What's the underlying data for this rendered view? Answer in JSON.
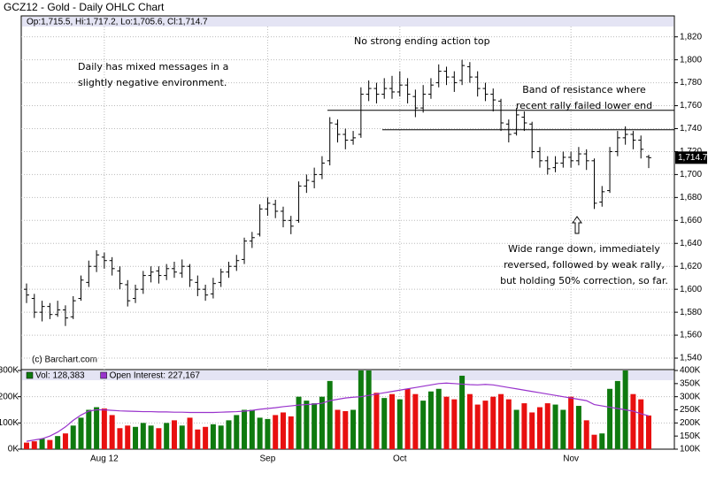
{
  "chart_data": {
    "type": "ohlc",
    "title": "GCZ12 - Gold - Daily OHLC Chart",
    "ohlc_header": "Op:1,715.5, Hi:1,717.2, Lo:1,705.6, Cl:1,714.7",
    "last_price_label": "1,714.7",
    "copyright": "(c) Barchart.com",
    "annotations": [
      [
        "No strong ending action top"
      ],
      [
        "Daily has mixed messages in a",
        "slightly negative environment."
      ],
      [
        "Band of resistance where",
        "recent rally failed lower end"
      ],
      [
        "Wide range down, immediately",
        "reversed, followed by weak rally,",
        "but holding 50% correction, so far."
      ]
    ],
    "resistance_levels": [
      1756,
      1739
    ],
    "bar_color": "#000000",
    "categories": [
      null,
      null,
      null,
      null,
      null,
      null,
      null,
      null,
      null,
      null,
      "Aug 12",
      null,
      null,
      null,
      null,
      null,
      null,
      null,
      null,
      null,
      null,
      null,
      null,
      null,
      null,
      null,
      null,
      null,
      null,
      null,
      null,
      "Sep",
      null,
      null,
      null,
      null,
      null,
      null,
      null,
      null,
      null,
      null,
      null,
      null,
      null,
      null,
      null,
      null,
      "Oct",
      null,
      null,
      null,
      null,
      null,
      null,
      null,
      null,
      null,
      null,
      null,
      null,
      null,
      null,
      null,
      null,
      null,
      null,
      null,
      null,
      null,
      "Nov",
      null,
      null,
      null,
      null,
      null,
      null,
      null,
      null,
      null,
      null
    ],
    "ohlc": [
      [
        1600,
        1605,
        1588,
        1595
      ],
      [
        1592,
        1596,
        1575,
        1580
      ],
      [
        1580,
        1590,
        1572,
        1585
      ],
      [
        1585,
        1588,
        1574,
        1578
      ],
      [
        1578,
        1590,
        1576,
        1582
      ],
      [
        1582,
        1586,
        1568,
        1575
      ],
      [
        1576,
        1594,
        1574,
        1590
      ],
      [
        1592,
        1612,
        1590,
        1608
      ],
      [
        1606,
        1625,
        1602,
        1620
      ],
      [
        1620,
        1634,
        1615,
        1630
      ],
      [
        1628,
        1632,
        1618,
        1625
      ],
      [
        1625,
        1628,
        1612,
        1618
      ],
      [
        1616,
        1620,
        1600,
        1605
      ],
      [
        1604,
        1608,
        1585,
        1590
      ],
      [
        1592,
        1604,
        1588,
        1600
      ],
      [
        1600,
        1616,
        1596,
        1612
      ],
      [
        1612,
        1620,
        1606,
        1615
      ],
      [
        1616,
        1620,
        1605,
        1612
      ],
      [
        1612,
        1622,
        1608,
        1618
      ],
      [
        1618,
        1624,
        1610,
        1615
      ],
      [
        1614,
        1626,
        1610,
        1620
      ],
      [
        1620,
        1622,
        1602,
        1608
      ],
      [
        1606,
        1612,
        1594,
        1600
      ],
      [
        1600,
        1604,
        1590,
        1595
      ],
      [
        1596,
        1610,
        1592,
        1605
      ],
      [
        1606,
        1618,
        1602,
        1615
      ],
      [
        1615,
        1624,
        1610,
        1620
      ],
      [
        1620,
        1630,
        1616,
        1625
      ],
      [
        1626,
        1645,
        1622,
        1642
      ],
      [
        1642,
        1650,
        1636,
        1645
      ],
      [
        1648,
        1674,
        1646,
        1670
      ],
      [
        1670,
        1680,
        1664,
        1675
      ],
      [
        1674,
        1678,
        1662,
        1668
      ],
      [
        1668,
        1672,
        1654,
        1660
      ],
      [
        1660,
        1664,
        1648,
        1655
      ],
      [
        1660,
        1694,
        1658,
        1690
      ],
      [
        1690,
        1700,
        1684,
        1695
      ],
      [
        1694,
        1706,
        1688,
        1700
      ],
      [
        1700,
        1716,
        1696,
        1710
      ],
      [
        1712,
        1750,
        1708,
        1745
      ],
      [
        1744,
        1748,
        1728,
        1735
      ],
      [
        1735,
        1740,
        1722,
        1730
      ],
      [
        1730,
        1738,
        1726,
        1732
      ],
      [
        1735,
        1776,
        1732,
        1770
      ],
      [
        1770,
        1782,
        1764,
        1775
      ],
      [
        1775,
        1780,
        1762,
        1770
      ],
      [
        1770,
        1784,
        1766,
        1775
      ],
      [
        1775,
        1786,
        1766,
        1772
      ],
      [
        1772,
        1790,
        1768,
        1778
      ],
      [
        1778,
        1784,
        1762,
        1770
      ],
      [
        1768,
        1774,
        1750,
        1758
      ],
      [
        1758,
        1778,
        1754,
        1770
      ],
      [
        1770,
        1784,
        1766,
        1778
      ],
      [
        1780,
        1796,
        1776,
        1790
      ],
      [
        1790,
        1794,
        1778,
        1785
      ],
      [
        1785,
        1790,
        1772,
        1780
      ],
      [
        1782,
        1800,
        1778,
        1795
      ],
      [
        1794,
        1798,
        1780,
        1785
      ],
      [
        1785,
        1790,
        1768,
        1775
      ],
      [
        1775,
        1780,
        1764,
        1770
      ],
      [
        1770,
        1775,
        1755,
        1765
      ],
      [
        1764,
        1766,
        1738,
        1745
      ],
      [
        1744,
        1748,
        1728,
        1735
      ],
      [
        1736,
        1758,
        1734,
        1752
      ],
      [
        1750,
        1755,
        1738,
        1745
      ],
      [
        1744,
        1746,
        1714,
        1720
      ],
      [
        1720,
        1724,
        1706,
        1712
      ],
      [
        1712,
        1716,
        1700,
        1705
      ],
      [
        1706,
        1716,
        1702,
        1710
      ],
      [
        1710,
        1720,
        1706,
        1715
      ],
      [
        1715,
        1720,
        1706,
        1712
      ],
      [
        1712,
        1724,
        1708,
        1718
      ],
      [
        1718,
        1722,
        1704,
        1712
      ],
      [
        1712,
        1714,
        1670,
        1675
      ],
      [
        1676,
        1690,
        1672,
        1685
      ],
      [
        1686,
        1724,
        1684,
        1720
      ],
      [
        1720,
        1738,
        1716,
        1732
      ],
      [
        1732,
        1742,
        1726,
        1735
      ],
      [
        1735,
        1738,
        1722,
        1730
      ],
      [
        1730,
        1734,
        1714,
        1722
      ],
      [
        1715.5,
        1717.2,
        1705.6,
        1714.7
      ]
    ],
    "ylim": [
      1530,
      1829
    ],
    "yticks": [
      {
        "value": 1540,
        "label": "1,540"
      },
      {
        "value": 1560,
        "label": "1,560"
      },
      {
        "value": 1580,
        "label": "1,580"
      },
      {
        "value": 1600,
        "label": "1,600"
      },
      {
        "value": 1620,
        "label": "1,620"
      },
      {
        "value": 1640,
        "label": "1,640"
      },
      {
        "value": 1660,
        "label": "1,660"
      },
      {
        "value": 1680,
        "label": "1,680"
      },
      {
        "value": 1700,
        "label": "1,700"
      },
      {
        "value": 1720,
        "label": "1,720"
      },
      {
        "value": 1740,
        "label": "1,740"
      },
      {
        "value": 1760,
        "label": "1,760"
      },
      {
        "value": 1780,
        "label": "1,780"
      },
      {
        "value": 1800,
        "label": "1,800"
      },
      {
        "value": 1820,
        "label": "1,820"
      }
    ],
    "grid": true,
    "volume": {
      "up_color": "#0f7a0f",
      "down_color": "#e81010",
      "series": [
        {
          "name": "Vol: 128,383",
          "color": "#0f7a0f",
          "values": [
            25000,
            30000,
            40000,
            35000,
            50000,
            60000,
            90000,
            120000,
            150000,
            160000,
            155000,
            130000,
            80000,
            90000,
            85000,
            100000,
            90000,
            80000,
            100000,
            110000,
            90000,
            120000,
            75000,
            85000,
            95000,
            90000,
            110000,
            130000,
            150000,
            150000,
            120000,
            115000,
            130000,
            140000,
            125000,
            200000,
            185000,
            175000,
            200000,
            260000,
            150000,
            145000,
            150000,
            300000,
            360000,
            215000,
            195000,
            210000,
            190000,
            230000,
            210000,
            185000,
            220000,
            230000,
            200000,
            190000,
            280000,
            210000,
            170000,
            185000,
            200000,
            210000,
            190000,
            150000,
            175000,
            140000,
            160000,
            175000,
            170000,
            150000,
            200000,
            165000,
            110000,
            55000,
            60000,
            230000,
            260000,
            340000,
            210000,
            190000,
            128383
          ]
        },
        {
          "name": "Open Interest: 227,167",
          "color": "#9933cc",
          "axis": "y2",
          "values": [
            130000,
            135000,
            140000,
            150000,
            165000,
            185000,
            210000,
            230000,
            245000,
            250000,
            250000,
            248000,
            246000,
            245000,
            244000,
            243000,
            243000,
            242000,
            242000,
            241000,
            241000,
            240000,
            240000,
            240000,
            240000,
            241000,
            242000,
            243000,
            245000,
            248000,
            252000,
            255000,
            258000,
            262000,
            265000,
            268000,
            270000,
            272000,
            275000,
            285000,
            290000,
            295000,
            298000,
            300000,
            305000,
            310000,
            315000,
            320000,
            325000,
            330000,
            335000,
            340000,
            345000,
            350000,
            352000,
            350000,
            348000,
            346000,
            345000,
            347000,
            345000,
            340000,
            335000,
            330000,
            325000,
            320000,
            315000,
            310000,
            305000,
            300000,
            295000,
            290000,
            285000,
            270000,
            265000,
            260000,
            255000,
            250000,
            245000,
            235000,
            227167
          ]
        }
      ],
      "ylim": [
        0,
        300000
      ],
      "yticks": [
        {
          "value": 0,
          "label": "0K"
        },
        {
          "value": 100000,
          "label": "100K"
        },
        {
          "value": 200000,
          "label": "200K"
        },
        {
          "value": 300000,
          "label": "300K"
        }
      ],
      "y2lim": [
        100000,
        400000
      ],
      "y2ticks": [
        {
          "value": 100000,
          "label": "100K"
        },
        {
          "value": 150000,
          "label": "150K"
        },
        {
          "value": 200000,
          "label": "200K"
        },
        {
          "value": 250000,
          "label": "250K"
        },
        {
          "value": 300000,
          "label": "300K"
        },
        {
          "value": 350000,
          "label": "350K"
        },
        {
          "value": 400000,
          "label": "400K"
        }
      ]
    }
  }
}
